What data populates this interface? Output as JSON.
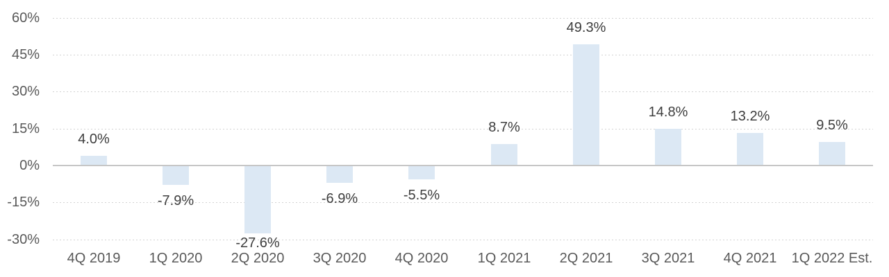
{
  "chart_data": {
    "type": "bar",
    "title": "",
    "xlabel": "",
    "ylabel": "",
    "categories": [
      "4Q 2019",
      "1Q 2020",
      "2Q 2020",
      "3Q 2020",
      "4Q 2020",
      "1Q 2021",
      "2Q 2021",
      "3Q 2021",
      "4Q 2021",
      "1Q 2022 Est."
    ],
    "values": [
      4.0,
      -7.9,
      -27.6,
      -6.9,
      -5.5,
      8.7,
      49.3,
      14.8,
      13.2,
      9.5
    ],
    "data_labels": [
      "4.0%",
      "-7.9%",
      "-27.6%",
      "-6.9%",
      "-5.5%",
      "8.7%",
      "49.3%",
      "14.8%",
      "13.2%",
      "9.5%"
    ],
    "ylim": [
      -30,
      60
    ],
    "y_ticks": [
      {
        "value": 60,
        "label": "60%"
      },
      {
        "value": 45,
        "label": "45%"
      },
      {
        "value": 30,
        "label": "30%"
      },
      {
        "value": 15,
        "label": "15%"
      },
      {
        "value": 0,
        "label": "0%"
      },
      {
        "value": -15,
        "label": "-15%"
      },
      {
        "value": -30,
        "label": "-30%"
      }
    ],
    "grid": "horizontal-dotted",
    "legend": "none",
    "colors": {
      "bar_fill": "#dce8f4",
      "gridline": "#d2d2d2",
      "zero_axis_line": "#c6c6c6",
      "axis_tick_label": "#595959",
      "data_label": "#3d3d3d",
      "background": "#ffffff"
    }
  }
}
